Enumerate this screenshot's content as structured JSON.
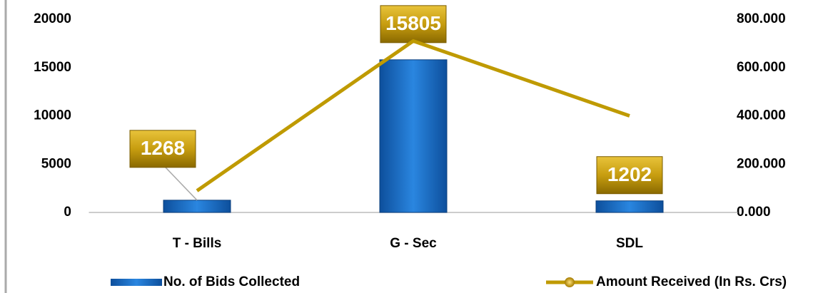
{
  "chart_data": {
    "type": "bar",
    "categories": [
      "T - Bills",
      "G - Sec",
      "SDL"
    ],
    "series": [
      {
        "name": "No. of Bids Collected",
        "type": "bar",
        "color": "#1f6fc5",
        "values": [
          1268,
          15805,
          1202
        ]
      },
      {
        "name": "Amount Received (In Rs. Crs)",
        "type": "line",
        "axis": "y2",
        "color": "#bf9a00",
        "values": [
          90,
          710,
          400
        ]
      }
    ],
    "ylim": [
      0,
      20000
    ],
    "yticks": [
      0,
      5000,
      10000,
      15000,
      20000
    ],
    "y2lim": [
      0,
      800
    ],
    "y2ticks": [
      {
        "value": 0,
        "label": "0.000"
      },
      {
        "value": 200,
        "label": "200.000"
      },
      {
        "value": 400,
        "label": "400.000"
      },
      {
        "value": 600,
        "label": "600.000"
      },
      {
        "value": 800,
        "label": "800.000"
      }
    ],
    "legend": "bottom"
  }
}
